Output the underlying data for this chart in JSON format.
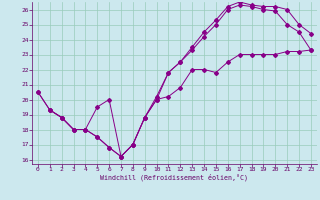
{
  "xlabel": "Windchill (Refroidissement éolien,°C)",
  "bg_color": "#cce8ee",
  "grid_color": "#99ccbb",
  "line_color": "#880088",
  "xlim": [
    -0.5,
    23.5
  ],
  "ylim": [
    15.7,
    26.5
  ],
  "yticks": [
    16,
    17,
    18,
    19,
    20,
    21,
    22,
    23,
    24,
    25,
    26
  ],
  "xticks": [
    0,
    1,
    2,
    3,
    4,
    5,
    6,
    7,
    8,
    9,
    10,
    11,
    12,
    13,
    14,
    15,
    16,
    17,
    18,
    19,
    20,
    21,
    22,
    23
  ],
  "line1_x": [
    0,
    1,
    2,
    3,
    4,
    5,
    6,
    7,
    8,
    9,
    10,
    11,
    12,
    13,
    14,
    15,
    16,
    17,
    18,
    19,
    20,
    21,
    22,
    23
  ],
  "line1_y": [
    20.5,
    19.3,
    18.8,
    18.0,
    18.0,
    17.5,
    16.8,
    16.2,
    17.0,
    18.8,
    20.0,
    20.2,
    20.8,
    22.0,
    22.0,
    21.8,
    22.5,
    23.0,
    23.0,
    23.0,
    23.0,
    23.2,
    23.2,
    23.3
  ],
  "line2_x": [
    0,
    1,
    2,
    3,
    4,
    5,
    6,
    7,
    8,
    9,
    10,
    11,
    12,
    13,
    14,
    15,
    16,
    17,
    18,
    19,
    20,
    21,
    22,
    23
  ],
  "line2_y": [
    20.5,
    19.3,
    18.8,
    18.0,
    18.0,
    17.5,
    16.8,
    16.2,
    17.0,
    18.8,
    20.0,
    21.8,
    22.5,
    23.3,
    24.2,
    25.0,
    26.0,
    26.3,
    26.2,
    26.0,
    25.9,
    25.0,
    24.5,
    23.3
  ],
  "line3_x": [
    1,
    2,
    3,
    4,
    5,
    6,
    7,
    8,
    9,
    10,
    11,
    12,
    13,
    14,
    15,
    16,
    17,
    18,
    19,
    20,
    21,
    22,
    23
  ],
  "line3_y": [
    19.3,
    18.8,
    18.0,
    18.0,
    19.5,
    20.0,
    16.2,
    17.0,
    18.8,
    20.2,
    21.8,
    22.5,
    23.5,
    24.5,
    25.3,
    26.2,
    26.5,
    26.3,
    26.2,
    26.2,
    26.0,
    25.0,
    24.4
  ]
}
